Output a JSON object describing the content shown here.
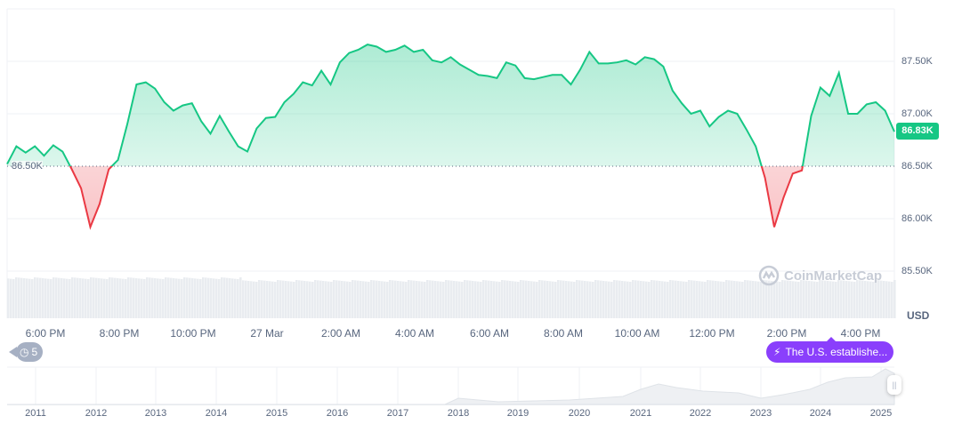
{
  "chart_data": {
    "type": "area",
    "baseline": 86500,
    "baseline_label": "86.50K",
    "current_price_label": "86.83K",
    "currency": "USD",
    "colors": {
      "up": "#16c784",
      "down": "#ea3943",
      "event": "#8a3ffc"
    },
    "ylim": [
      85500,
      87750
    ],
    "y_ticks": [
      "87.50K",
      "87.00K",
      "86.50K",
      "86.00K",
      "85.50K"
    ],
    "x_ticks": [
      "6:00 PM",
      "8:00 PM",
      "10:00 PM",
      "27 Mar",
      "2:00 AM",
      "4:00 AM",
      "6:00 AM",
      "8:00 AM",
      "10:00 AM",
      "12:00 PM",
      "2:00 PM",
      "4:00 PM"
    ],
    "grid": true,
    "series": [
      {
        "time_start": "17:00",
        "step_minutes": 15,
        "values": [
          86520,
          86690,
          86630,
          86690,
          86600,
          86700,
          86640,
          86470,
          86290,
          85920,
          86140,
          86470,
          86560,
          86900,
          87280,
          87300,
          87240,
          87110,
          87030,
          87080,
          87100,
          86930,
          86810,
          86980,
          86830,
          86690,
          86640,
          86860,
          86960,
          86970,
          87110,
          87190,
          87300,
          87270,
          87410,
          87280,
          87490,
          87580,
          87610,
          87660,
          87640,
          87590,
          87610,
          87650,
          87590,
          87610,
          87510,
          87490,
          87540,
          87470,
          87420,
          87370,
          87360,
          87340,
          87490,
          87460,
          87340,
          87330,
          87350,
          87370,
          87370,
          87280,
          87420,
          87590,
          87480,
          87480,
          87490,
          87510,
          87470,
          87540,
          87520,
          87450,
          87220,
          87100,
          87000,
          87030,
          86880,
          86970,
          87030,
          87000,
          86850,
          86690,
          86390,
          85920,
          86200,
          86430,
          86460,
          86980,
          87250,
          87170,
          87390,
          87000,
          87000,
          87090,
          87110,
          87030,
          86830
        ]
      }
    ],
    "navigator_years": [
      "2011",
      "2012",
      "2013",
      "2014",
      "2015",
      "2016",
      "2017",
      "2018",
      "2019",
      "2020",
      "2021",
      "2022",
      "2023",
      "2024",
      "2025"
    ]
  },
  "watermark": "CoinMarketCap",
  "history_badge": {
    "count": "5",
    "icon": "history-icon"
  },
  "event_badge": {
    "text": "The U.S. establishe...",
    "icon": "lightning-icon"
  }
}
